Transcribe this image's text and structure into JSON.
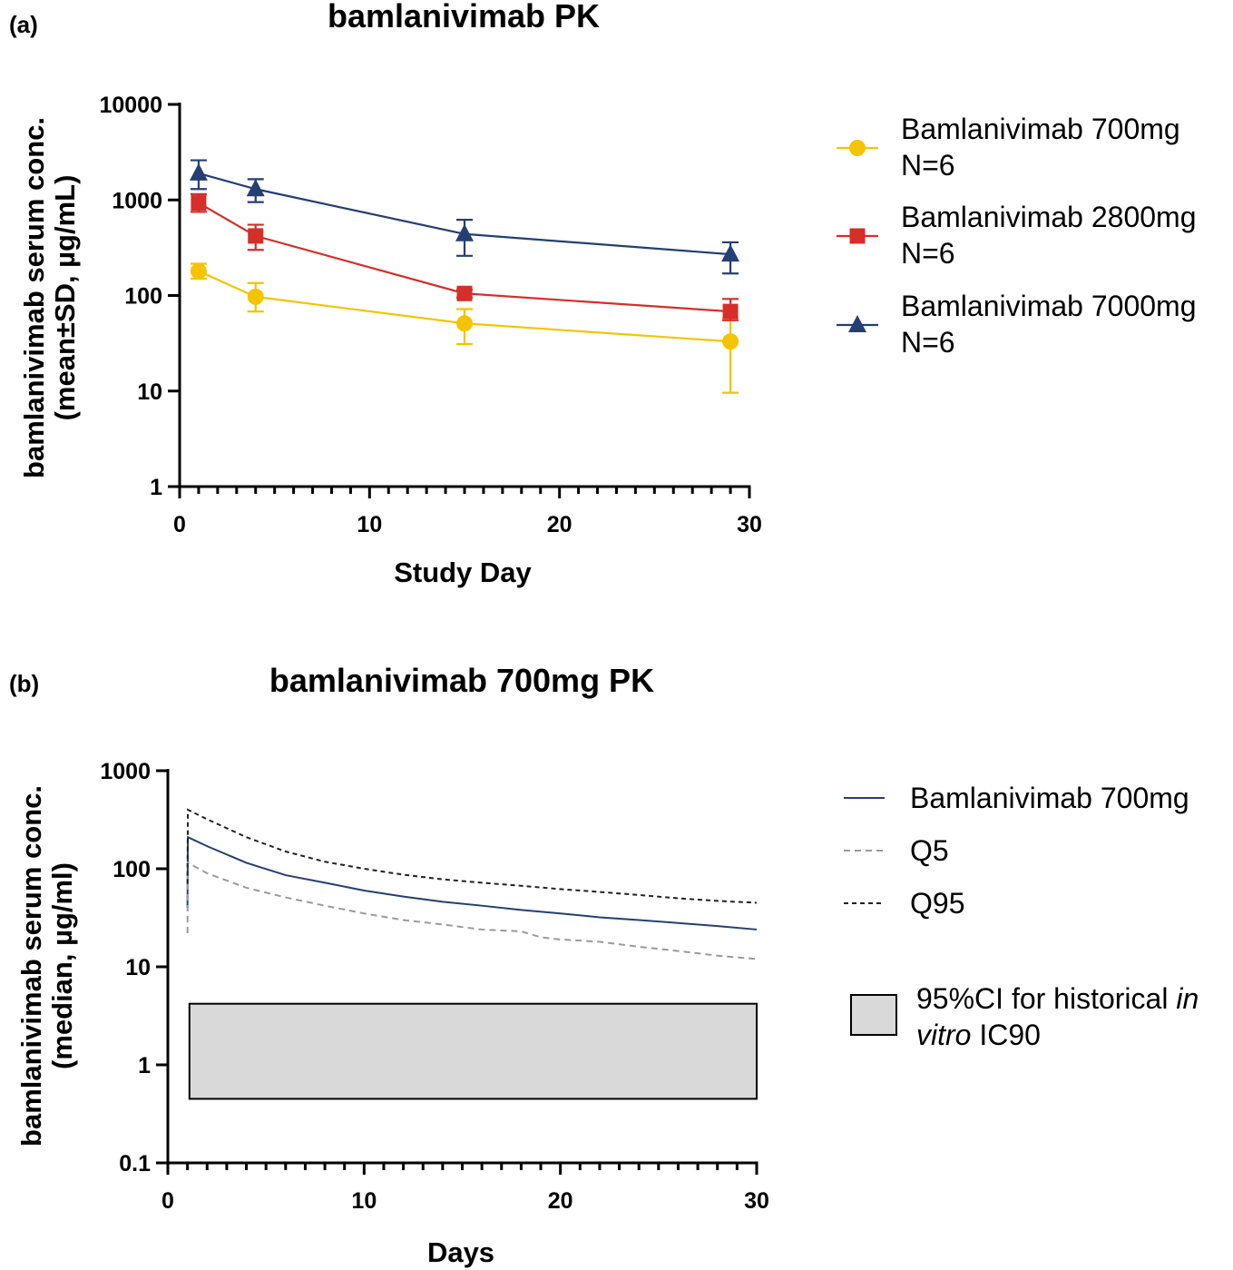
{
  "chart_data": [
    {
      "panel_label": "(a)",
      "type": "line",
      "title": "bamlanivimab PK",
      "xlabel": "Study Day",
      "ylabel": [
        "bamlanivimab serum conc.",
        "(mean±SD, µg/mL)"
      ],
      "yscale": "log",
      "xlim": [
        0,
        30
      ],
      "ylim": [
        1,
        10000
      ],
      "xticks": [
        "0",
        "10",
        "20",
        "30"
      ],
      "yticks": [
        "1",
        "10",
        "100",
        "1000",
        "10000"
      ],
      "legend_position": "right",
      "series": [
        {
          "name": "Bamlanivimab 700mg",
          "legend_sub": "N=6",
          "color": "#F5C400",
          "marker": "circle",
          "x": [
            1,
            4,
            15,
            29
          ],
          "y": [
            180,
            97,
            51,
            33
          ],
          "err_low": [
            150,
            68,
            31,
            9.6
          ],
          "err_high": [
            215,
            135,
            72,
            58
          ]
        },
        {
          "name": "Bamlanivimab 2800mg",
          "legend_sub": "N=6",
          "color": "#D62E28",
          "marker": "square",
          "x": [
            1,
            4,
            15,
            29
          ],
          "y": [
            930,
            420,
            105,
            68
          ],
          "err_low": [
            750,
            300,
            95,
            55
          ],
          "err_high": [
            1150,
            550,
            115,
            92
          ]
        },
        {
          "name": "Bamlanivimab 7000mg",
          "legend_sub": "N=6",
          "color": "#243F73",
          "marker": "triangle",
          "x": [
            1,
            4,
            15,
            29
          ],
          "y": [
            1900,
            1300,
            440,
            270
          ],
          "err_low": [
            1300,
            950,
            260,
            170
          ],
          "err_high": [
            2600,
            1650,
            620,
            360
          ]
        }
      ]
    },
    {
      "panel_label": "(b)",
      "type": "line",
      "title": "bamlanivimab 700mg PK",
      "xlabel": "Days",
      "ylabel": [
        "bamlanivimab serum conc.",
        "(median, µg/ml)"
      ],
      "yscale": "log",
      "xlim": [
        0,
        30
      ],
      "ylim": [
        0.1,
        1000
      ],
      "xticks": [
        "0",
        "10",
        "20",
        "30"
      ],
      "yticks": [
        "0.1",
        "1",
        "10",
        "100",
        "1000"
      ],
      "legend_position": "right",
      "series": [
        {
          "name": "Bamlanivimab 700mg",
          "color": "#243F73",
          "dash": "solid",
          "x": [
            1,
            1.02,
            2,
            4,
            6,
            8,
            10,
            12,
            14,
            16,
            18,
            20,
            22,
            24,
            26,
            28,
            30
          ],
          "y": [
            40,
            210,
            170,
            115,
            86,
            72,
            60,
            52,
            46,
            42,
            38,
            35,
            32,
            30,
            28,
            26,
            24
          ]
        },
        {
          "name": "Q5",
          "color": "#9A9A9A",
          "dash": "dashed",
          "x": [
            1,
            1.02,
            2,
            4,
            6,
            8,
            10,
            12,
            14,
            16,
            18,
            19,
            20,
            22,
            24,
            26,
            28,
            30
          ],
          "y": [
            22,
            115,
            90,
            64,
            51,
            42,
            35,
            30,
            27,
            24,
            23,
            20,
            19,
            18,
            16,
            14.5,
            13,
            12
          ]
        },
        {
          "name": "Q95",
          "color": "#222222",
          "dash": "dotted",
          "x": [
            1,
            1.02,
            2,
            4,
            6,
            8,
            10,
            12,
            14,
            16,
            18,
            20,
            22,
            24,
            26,
            28,
            30
          ],
          "y": [
            70,
            400,
            320,
            210,
            150,
            118,
            100,
            87,
            78,
            72,
            67,
            62,
            58,
            54,
            50,
            47,
            45
          ]
        }
      ],
      "band": {
        "label_parts": [
          "95%CI for historical ",
          "in",
          "vitro",
          " IC90"
        ],
        "x_range": [
          1.1,
          30
        ],
        "y_range": [
          0.45,
          4.2
        ],
        "fill": "#D9D9D9"
      }
    }
  ]
}
